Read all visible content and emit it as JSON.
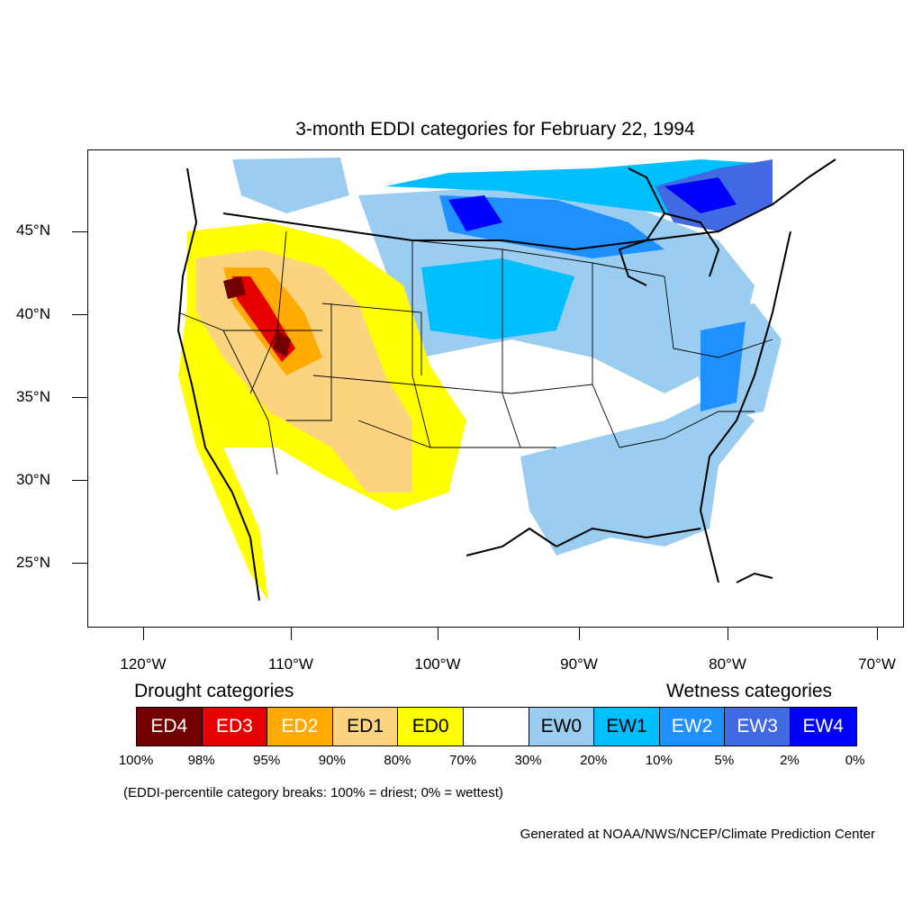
{
  "title": "3-month EDDI categories for February 22, 1994",
  "lat_labels": [
    "45°N",
    "40°N",
    "35°N",
    "30°N",
    "25°N"
  ],
  "lon_labels": [
    "120°W",
    "110°W",
    "100°W",
    "90°W",
    "80°W",
    "70°W"
  ],
  "legend": {
    "drought_heading": "Drought categories",
    "wetness_heading": "Wetness categories",
    "categories": [
      {
        "label": "ED4",
        "color": "#730000"
      },
      {
        "label": "ED3",
        "color": "#e60000"
      },
      {
        "label": "ED2",
        "color": "#ffaa00"
      },
      {
        "label": "ED1",
        "color": "#fcd37f"
      },
      {
        "label": "ED0",
        "color": "#ffff00"
      },
      {
        "label": "",
        "color": "#ffffff"
      },
      {
        "label": "EW0",
        "color": "#9bcdf0"
      },
      {
        "label": "EW1",
        "color": "#00bfff"
      },
      {
        "label": "EW2",
        "color": "#1e90ff"
      },
      {
        "label": "EW3",
        "color": "#4169e1"
      },
      {
        "label": "EW4",
        "color": "#0000ff"
      }
    ],
    "breaks": [
      "100%",
      "98%",
      "95%",
      "90%",
      "80%",
      "70%",
      "30%",
      "20%",
      "10%",
      "5%",
      "2%",
      "0%"
    ]
  },
  "note": "(EDDI-percentile category breaks: 100% = driest; 0% = wettest)",
  "credit": "Generated at NOAA/NWS/NCEP/Climate Prediction Center"
}
